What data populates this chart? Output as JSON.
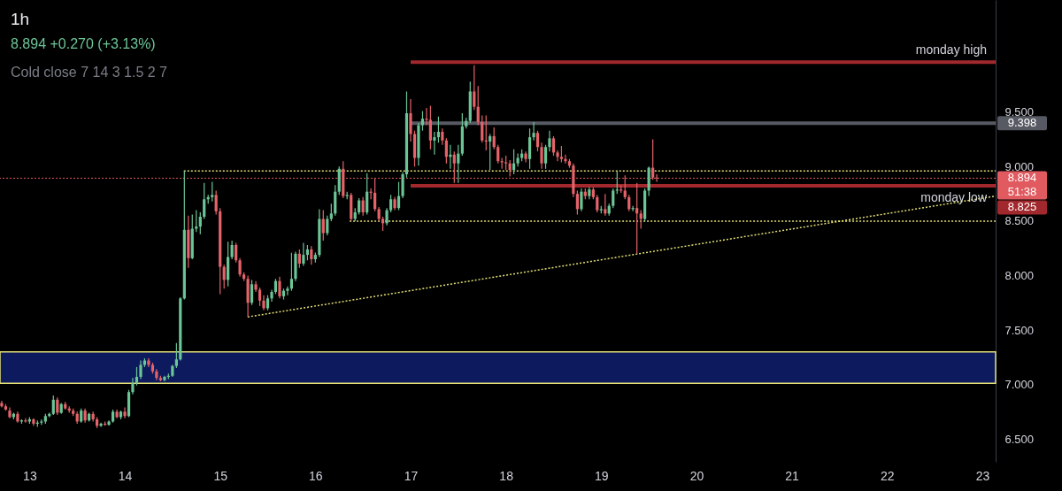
{
  "chart_data": {
    "type": "candlestick",
    "title": "1h",
    "subtitle": "8.894 +0.270 (+3.13%)",
    "annotations": [
      "Cold close 7 14 3 1.5 2 7",
      "51:38"
    ],
    "x": [
      12.708,
      12.75,
      12.792,
      12.833,
      12.875,
      12.917,
      12.958,
      13,
      13.042,
      13.083,
      13.125,
      13.167,
      13.208,
      13.25,
      13.292,
      13.333,
      13.375,
      13.417,
      13.458,
      13.5,
      13.542,
      13.583,
      13.625,
      13.667,
      13.708,
      13.75,
      13.792,
      13.833,
      13.875,
      13.917,
      13.958,
      14,
      14.042,
      14.083,
      14.125,
      14.167,
      14.208,
      14.25,
      14.292,
      14.333,
      14.375,
      14.417,
      14.458,
      14.5,
      14.542,
      14.583,
      14.625,
      14.667,
      14.708,
      14.75,
      14.792,
      14.833,
      14.875,
      14.917,
      14.958,
      15,
      15.042,
      15.083,
      15.125,
      15.167,
      15.208,
      15.25,
      15.292,
      15.333,
      15.375,
      15.417,
      15.458,
      15.5,
      15.542,
      15.583,
      15.625,
      15.667,
      15.708,
      15.75,
      15.792,
      15.833,
      15.875,
      15.917,
      15.958,
      16,
      16.042,
      16.083,
      16.125,
      16.167,
      16.208,
      16.25,
      16.292,
      16.333,
      16.375,
      16.417,
      16.458,
      16.5,
      16.542,
      16.583,
      16.625,
      16.667,
      16.708,
      16.75,
      16.792,
      16.833,
      16.875,
      16.917,
      16.958,
      17,
      17.042,
      17.083,
      17.125,
      17.167,
      17.208,
      17.25,
      17.292,
      17.333,
      17.375,
      17.417,
      17.458,
      17.5,
      17.542,
      17.583,
      17.625,
      17.667,
      17.708,
      17.75,
      17.792,
      17.833,
      17.875,
      17.917,
      17.958,
      18,
      18.042,
      18.083,
      18.125,
      18.167,
      18.208,
      18.25,
      18.292,
      18.333,
      18.375,
      18.417,
      18.458,
      18.5,
      18.542,
      18.583,
      18.625,
      18.667,
      18.708,
      18.75,
      18.792,
      18.833,
      18.875,
      18.917,
      18.958,
      19,
      19.042,
      19.083,
      19.125,
      19.167,
      19.208,
      19.25,
      19.292,
      19.333,
      19.375,
      19.417,
      19.458,
      19.5,
      19.542,
      19.583
    ],
    "ohlc": [
      [
        6.83,
        6.85,
        6.79,
        6.8
      ],
      [
        6.8,
        6.82,
        6.76,
        6.77
      ],
      [
        6.76,
        6.79,
        6.69,
        6.7
      ],
      [
        6.7,
        6.74,
        6.68,
        6.73
      ],
      [
        6.73,
        6.75,
        6.65,
        6.66
      ],
      [
        6.66,
        6.68,
        6.64,
        6.67
      ],
      [
        6.67,
        6.69,
        6.65,
        6.66
      ],
      [
        6.66,
        6.7,
        6.64,
        6.68
      ],
      [
        6.68,
        6.69,
        6.62,
        6.64
      ],
      [
        6.64,
        6.67,
        6.61,
        6.65
      ],
      [
        6.65,
        6.68,
        6.63,
        6.66
      ],
      [
        6.66,
        6.73,
        6.64,
        6.71
      ],
      [
        6.71,
        6.74,
        6.7,
        6.73
      ],
      [
        6.73,
        6.9,
        6.72,
        6.86
      ],
      [
        6.86,
        6.88,
        6.72,
        6.74
      ],
      [
        6.74,
        6.83,
        6.73,
        6.82
      ],
      [
        6.82,
        6.84,
        6.77,
        6.78
      ],
      [
        6.78,
        6.8,
        6.74,
        6.76
      ],
      [
        6.76,
        6.78,
        6.71,
        6.73
      ],
      [
        6.73,
        6.75,
        6.64,
        6.66
      ],
      [
        6.66,
        6.78,
        6.65,
        6.76
      ],
      [
        6.76,
        6.78,
        6.65,
        6.67
      ],
      [
        6.67,
        6.74,
        6.66,
        6.73
      ],
      [
        6.73,
        6.75,
        6.66,
        6.68
      ],
      [
        6.68,
        6.7,
        6.6,
        6.62
      ],
      [
        6.62,
        6.65,
        6.61,
        6.64
      ],
      [
        6.64,
        6.66,
        6.62,
        6.63
      ],
      [
        6.63,
        6.67,
        6.62,
        6.66
      ],
      [
        6.66,
        6.77,
        6.65,
        6.75
      ],
      [
        6.75,
        6.77,
        6.69,
        6.7
      ],
      [
        6.7,
        6.76,
        6.68,
        6.75
      ],
      [
        6.75,
        6.79,
        6.69,
        6.71
      ],
      [
        6.71,
        6.95,
        6.7,
        6.93
      ],
      [
        6.93,
        7.06,
        6.91,
        7.01
      ],
      [
        7.01,
        7.16,
        6.99,
        7.07
      ],
      [
        7.07,
        7.22,
        7.05,
        7.18
      ],
      [
        7.18,
        7.24,
        7.16,
        7.22
      ],
      [
        7.22,
        7.24,
        7.16,
        7.18
      ],
      [
        7.18,
        7.2,
        7.1,
        7.12
      ],
      [
        7.12,
        7.14,
        7.04,
        7.06
      ],
      [
        7.06,
        7.08,
        7.03,
        7.04
      ],
      [
        7.04,
        7.08,
        7.03,
        7.07
      ],
      [
        7.07,
        7.1,
        7.05,
        7.08
      ],
      [
        7.08,
        7.18,
        7.07,
        7.17
      ],
      [
        7.17,
        7.38,
        7.15,
        7.23
      ],
      [
        7.23,
        7.8,
        7.22,
        7.79
      ],
      [
        7.79,
        8.96,
        7.78,
        8.42
      ],
      [
        8.42,
        8.55,
        8.07,
        8.16
      ],
      [
        8.16,
        8.56,
        8.15,
        8.43
      ],
      [
        8.43,
        8.6,
        8.4,
        8.45
      ],
      [
        8.45,
        8.58,
        8.38,
        8.54
      ],
      [
        8.54,
        8.85,
        8.52,
        8.7
      ],
      [
        8.7,
        8.74,
        8.66,
        8.72
      ],
      [
        8.72,
        8.86,
        8.68,
        8.74
      ],
      [
        8.74,
        8.78,
        8.56,
        8.59
      ],
      [
        8.59,
        8.62,
        7.83,
        8.08
      ],
      [
        8.08,
        8.1,
        7.88,
        7.96
      ],
      [
        7.96,
        8.31,
        7.9,
        8.17
      ],
      [
        8.17,
        8.32,
        8.15,
        8.28
      ],
      [
        8.28,
        8.3,
        8.12,
        8.14
      ],
      [
        8.14,
        8.16,
        7.99,
        8.01
      ],
      [
        8.01,
        8.03,
        7.95,
        7.97
      ],
      [
        7.97,
        8.0,
        7.62,
        7.75
      ],
      [
        7.75,
        7.96,
        7.73,
        7.92
      ],
      [
        7.92,
        7.95,
        7.85,
        7.87
      ],
      [
        7.87,
        7.89,
        7.72,
        7.77
      ],
      [
        7.77,
        7.82,
        7.68,
        7.7
      ],
      [
        7.7,
        7.82,
        7.68,
        7.79
      ],
      [
        7.79,
        7.87,
        7.76,
        7.85
      ],
      [
        7.85,
        7.97,
        7.83,
        7.95
      ],
      [
        7.95,
        7.99,
        7.79,
        7.81
      ],
      [
        7.81,
        7.88,
        7.78,
        7.86
      ],
      [
        7.86,
        7.9,
        7.82,
        7.88
      ],
      [
        7.88,
        8.21,
        7.86,
        7.97
      ],
      [
        7.97,
        8.22,
        7.95,
        8.2
      ],
      [
        8.2,
        8.24,
        8.07,
        8.11
      ],
      [
        8.11,
        8.3,
        8.09,
        8.19
      ],
      [
        8.19,
        8.28,
        8.14,
        8.24
      ],
      [
        8.24,
        8.27,
        8.1,
        8.15
      ],
      [
        8.15,
        8.21,
        8.12,
        8.19
      ],
      [
        8.19,
        8.61,
        8.17,
        8.52
      ],
      [
        8.52,
        8.6,
        8.32,
        8.39
      ],
      [
        8.39,
        8.55,
        8.37,
        8.52
      ],
      [
        8.52,
        8.66,
        8.5,
        8.57
      ],
      [
        8.57,
        8.83,
        8.55,
        8.77
      ],
      [
        8.77,
        9.0,
        8.74,
        8.98
      ],
      [
        8.98,
        9.05,
        8.71,
        8.73
      ],
      [
        8.73,
        8.77,
        8.7,
        8.74
      ],
      [
        8.74,
        8.76,
        8.5,
        8.52
      ],
      [
        8.52,
        8.62,
        8.5,
        8.58
      ],
      [
        8.58,
        8.71,
        8.56,
        8.69
      ],
      [
        8.69,
        8.72,
        8.55,
        8.58
      ],
      [
        8.58,
        8.94,
        8.56,
        8.77
      ],
      [
        8.77,
        8.8,
        8.7,
        8.76
      ],
      [
        8.76,
        8.89,
        8.59,
        8.61
      ],
      [
        8.61,
        8.63,
        8.5,
        8.52
      ],
      [
        8.52,
        8.54,
        8.41,
        8.48
      ],
      [
        8.48,
        8.62,
        8.46,
        8.6
      ],
      [
        8.6,
        8.74,
        8.58,
        8.7
      ],
      [
        8.7,
        8.72,
        8.6,
        8.62
      ],
      [
        8.62,
        8.86,
        8.6,
        8.73
      ],
      [
        8.73,
        8.95,
        8.71,
        8.93
      ],
      [
        8.93,
        9.69,
        8.9,
        9.49
      ],
      [
        9.49,
        9.62,
        9.23,
        9.3
      ],
      [
        9.3,
        9.33,
        9.0,
        9.08
      ],
      [
        9.08,
        9.4,
        9.01,
        9.38
      ],
      [
        9.38,
        9.51,
        9.33,
        9.44
      ],
      [
        9.44,
        9.54,
        9.38,
        9.43
      ],
      [
        9.43,
        9.56,
        9.16,
        9.24
      ],
      [
        9.24,
        9.32,
        9.11,
        9.27
      ],
      [
        9.27,
        9.46,
        9.22,
        9.32
      ],
      [
        9.32,
        9.35,
        9.2,
        9.24
      ],
      [
        9.24,
        9.26,
        9.03,
        9.09
      ],
      [
        9.09,
        9.2,
        8.98,
        9.11
      ],
      [
        9.11,
        9.14,
        8.85,
        9.03
      ],
      [
        9.03,
        9.2,
        8.85,
        9.12
      ],
      [
        9.12,
        9.49,
        9.1,
        9.37
      ],
      [
        9.37,
        9.45,
        9.35,
        9.42
      ],
      [
        9.42,
        9.78,
        9.4,
        9.69
      ],
      [
        9.69,
        9.93,
        9.52,
        9.55
      ],
      [
        9.55,
        9.74,
        9.38,
        9.41
      ],
      [
        9.41,
        9.47,
        9.22,
        9.24
      ],
      [
        9.24,
        9.47,
        9.15,
        9.23
      ],
      [
        9.23,
        9.3,
        8.97,
        9.28
      ],
      [
        9.28,
        9.36,
        9.16,
        9.18
      ],
      [
        9.18,
        9.2,
        9.03,
        9.05
      ],
      [
        9.05,
        9.08,
        8.98,
        9.04
      ],
      [
        9.04,
        9.1,
        8.97,
        9.03
      ],
      [
        9.03,
        9.06,
        8.91,
        8.97
      ],
      [
        8.97,
        9.16,
        8.93,
        9.03
      ],
      [
        9.03,
        9.12,
        9.0,
        9.08
      ],
      [
        9.08,
        9.16,
        9.05,
        9.12
      ],
      [
        9.12,
        9.14,
        9.04,
        9.07
      ],
      [
        9.07,
        9.35,
        8.98,
        9.27
      ],
      [
        9.27,
        9.41,
        9.24,
        9.31
      ],
      [
        9.31,
        9.33,
        9.14,
        9.18
      ],
      [
        9.18,
        9.22,
        8.98,
        9.03
      ],
      [
        9.03,
        9.2,
        8.98,
        9.18
      ],
      [
        9.18,
        9.33,
        9.14,
        9.26
      ],
      [
        9.26,
        9.28,
        9.1,
        9.13
      ],
      [
        9.13,
        9.15,
        9.05,
        9.09
      ],
      [
        9.09,
        9.19,
        9.04,
        9.07
      ],
      [
        9.07,
        9.11,
        9.03,
        9.05
      ],
      [
        9.05,
        9.07,
        8.99,
        9.01
      ],
      [
        9.01,
        9.03,
        8.72,
        8.75
      ],
      [
        8.75,
        8.78,
        8.56,
        8.61
      ],
      [
        8.61,
        8.8,
        8.59,
        8.77
      ],
      [
        8.77,
        8.8,
        8.7,
        8.73
      ],
      [
        8.73,
        8.81,
        8.7,
        8.79
      ],
      [
        8.79,
        8.81,
        8.7,
        8.72
      ],
      [
        8.72,
        8.74,
        8.58,
        8.6
      ],
      [
        8.6,
        8.64,
        8.57,
        8.61
      ],
      [
        8.61,
        8.75,
        8.55,
        8.57
      ],
      [
        8.57,
        8.66,
        8.55,
        8.64
      ],
      [
        8.64,
        8.8,
        8.62,
        8.78
      ],
      [
        8.78,
        8.96,
        8.75,
        8.79
      ],
      [
        8.79,
        8.83,
        8.76,
        8.78
      ],
      [
        8.78,
        8.92,
        8.7,
        8.72
      ],
      [
        8.72,
        8.74,
        8.59,
        8.61
      ],
      [
        8.61,
        8.64,
        8.59,
        8.62
      ],
      [
        8.62,
        8.85,
        8.2,
        8.57
      ],
      [
        8.57,
        8.6,
        8.43,
        8.52
      ],
      [
        8.52,
        8.8,
        8.5,
        8.78
      ],
      [
        8.78,
        9.0,
        8.73,
        8.99
      ],
      [
        8.99,
        9.25,
        8.88,
        8.9
      ],
      [
        8.9,
        8.93,
        8.86,
        8.894
      ]
    ],
    "colors": [
      "#e5636a",
      "#e5636a",
      "#e5636a",
      "#6cc597",
      "#e5636a",
      "#6cc597",
      "#e5636a",
      "#6cc597",
      "#e5636a",
      "#6cc597",
      "#6cc597",
      "#6cc597",
      "#6cc597",
      "#6cc597",
      "#e5636a",
      "#6cc597",
      "#e5636a",
      "#e5636a",
      "#e5636a",
      "#e5636a",
      "#6cc597",
      "#e5636a",
      "#6cc597",
      "#e5636a",
      "#e5636a",
      "#6cc597",
      "#e5636a",
      "#6cc597",
      "#6cc597",
      "#e5636a",
      "#6cc597",
      "#e5636a",
      "#6cc597",
      "#6cc597",
      "#6cc597",
      "#6cc597",
      "#6cc597",
      "#e5636a",
      "#e5636a",
      "#e5636a",
      "#e5636a",
      "#6cc597",
      "#6cc597",
      "#6cc597",
      "#6cc597",
      "#6cc597",
      "#6cc597",
      "#e5636a",
      "#6cc597",
      "#6cc597",
      "#6cc597",
      "#6cc597",
      "#6cc597",
      "#6cc597",
      "#e5636a",
      "#e5636a",
      "#e5636a",
      "#6cc597",
      "#6cc597",
      "#e5636a",
      "#e5636a",
      "#e5636a",
      "#e5636a",
      "#6cc597",
      "#e5636a",
      "#e5636a",
      "#e5636a",
      "#6cc597",
      "#6cc597",
      "#6cc597",
      "#e5636a",
      "#6cc597",
      "#6cc597",
      "#6cc597",
      "#6cc597",
      "#e5636a",
      "#6cc597",
      "#6cc597",
      "#e5636a",
      "#6cc597",
      "#6cc597",
      "#e5636a",
      "#6cc597",
      "#6cc597",
      "#6cc597",
      "#6cc597",
      "#e5636a",
      "#6cc597",
      "#e5636a",
      "#6cc597",
      "#6cc597",
      "#e5636a",
      "#6cc597",
      "#e5636a",
      "#e5636a",
      "#e5636a",
      "#e5636a",
      "#6cc597",
      "#6cc597",
      "#e5636a",
      "#6cc597",
      "#6cc597",
      "#6cc597",
      "#e5636a",
      "#e5636a",
      "#6cc597",
      "#6cc597",
      "#e5636a",
      "#e5636a",
      "#6cc597",
      "#6cc597",
      "#e5636a",
      "#e5636a",
      "#6cc597",
      "#e5636a",
      "#6cc597",
      "#6cc597",
      "#6cc597",
      "#6cc597",
      "#e5636a",
      "#e5636a",
      "#e5636a",
      "#e5636a",
      "#6cc597",
      "#e5636a",
      "#e5636a",
      "#e5636a",
      "#e5636a",
      "#e5636a",
      "#6cc597",
      "#6cc597",
      "#6cc597",
      "#e5636a",
      "#6cc597",
      "#6cc597",
      "#e5636a",
      "#e5636a",
      "#6cc597",
      "#6cc597",
      "#e5636a",
      "#e5636a",
      "#e5636a",
      "#e5636a",
      "#e5636a",
      "#e5636a",
      "#e5636a",
      "#6cc597",
      "#e5636a",
      "#6cc597",
      "#e5636a",
      "#e5636a",
      "#6cc597",
      "#e5636a",
      "#6cc597",
      "#6cc597",
      "#6cc597",
      "#e5636a",
      "#e5636a",
      "#e5636a",
      "#6cc597",
      "#e5636a",
      "#e5636a",
      "#6cc597",
      "#6cc597",
      "#e5636a",
      "#e5636a"
    ],
    "series": [
      {
        "type": "line",
        "name": "monday high",
        "color": "#a1282d",
        "x": [
          17.0,
          23.14
        ],
        "values": [
          9.96,
          9.96
        ]
      },
      {
        "type": "line",
        "color": "#575a63",
        "x": [
          17.0,
          23.14
        ],
        "values": [
          9.398,
          9.398
        ],
        "value_labels": [
          null,
          "9.398"
        ]
      },
      {
        "type": "line",
        "name": "monday low",
        "color": "#a1282d",
        "x": [
          17.0,
          23.14
        ],
        "values": [
          8.825,
          8.825
        ],
        "value_labels": [
          null,
          "8.825"
        ]
      },
      {
        "type": "line",
        "color": "#e3df74",
        "line_style": "dotted",
        "x": [
          14.62,
          23.14
        ],
        "values": [
          8.96,
          8.96
        ]
      },
      {
        "type": "line",
        "color": "#e3df74",
        "line_style": "dotted",
        "x": [
          16.36,
          23.14
        ],
        "values": [
          8.5,
          8.5
        ]
      },
      {
        "type": "line",
        "color": "#e3df74",
        "line_style": "dotted",
        "x": [
          15.29,
          23.14
        ],
        "values": [
          7.62,
          8.73
        ]
      }
    ],
    "bands": [
      {
        "axis": "y",
        "from": 7.01,
        "to": 7.3,
        "color": "#0d1b5e"
      }
    ],
    "ref_lines": [
      {
        "axis": "y",
        "value": 8.894,
        "label": "8.894",
        "color": "#e05a60",
        "line_style": "dotted"
      }
    ],
    "xlim": [
      12.69,
      23.14
    ],
    "ylim": [
      6.29,
      10.53
    ],
    "xticks": [
      13,
      14,
      15,
      16,
      17,
      18,
      19,
      20,
      21,
      22,
      23
    ],
    "yticks": [
      {
        "value": 6.5,
        "label": "6.500"
      },
      {
        "value": 7,
        "label": "7.000"
      },
      {
        "value": 7.5,
        "label": "7.500"
      },
      {
        "value": 8,
        "label": "8.000"
      },
      {
        "value": 8.5,
        "label": "8.500"
      },
      {
        "value": 9,
        "label": "9.000"
      },
      {
        "value": 9.5,
        "label": "9.500"
      }
    ],
    "grid": false
  }
}
